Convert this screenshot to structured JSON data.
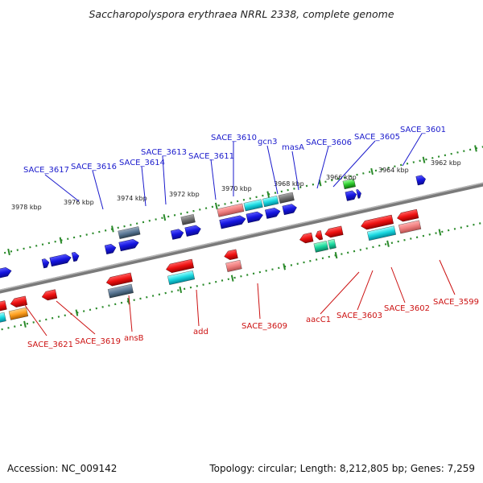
{
  "title": "Saccharopolyspora erythraea NRRL 2338, complete genome",
  "accession": "Accession: NC_009142",
  "summary": "Topology: circular; Length: 8,212,805 bp; Genes: 7,259",
  "scale_labels": [
    "3978 kbp",
    "3976 kbp",
    "3974 kbp",
    "3972 kbp",
    "3970 kbp",
    "3968 kbp",
    "3966 kbp",
    "3964 kbp",
    "3962 kbp"
  ],
  "top_genes": [
    "SACE_3617",
    "SACE_3616",
    "SACE_3614",
    "SACE_3613",
    "SACE_3611",
    "SACE_3610",
    "gcn3",
    "masA",
    "SACE_3606",
    "SACE_3605",
    "SACE_3601"
  ],
  "bottom_genes": [
    "SACE_3621",
    "SACE_3619",
    "ansB",
    "add",
    "SACE_3609",
    "aacC1",
    "SACE_3603",
    "SACE_3602",
    "SACE_3599"
  ],
  "colors": {
    "forward_gene": "#1111dd",
    "reverse_gene": "#ee1111",
    "backbone": "#777777",
    "scale": "#2a8a2a",
    "top_label": "#1a1acc",
    "bottom_label": "#cc1111"
  }
}
